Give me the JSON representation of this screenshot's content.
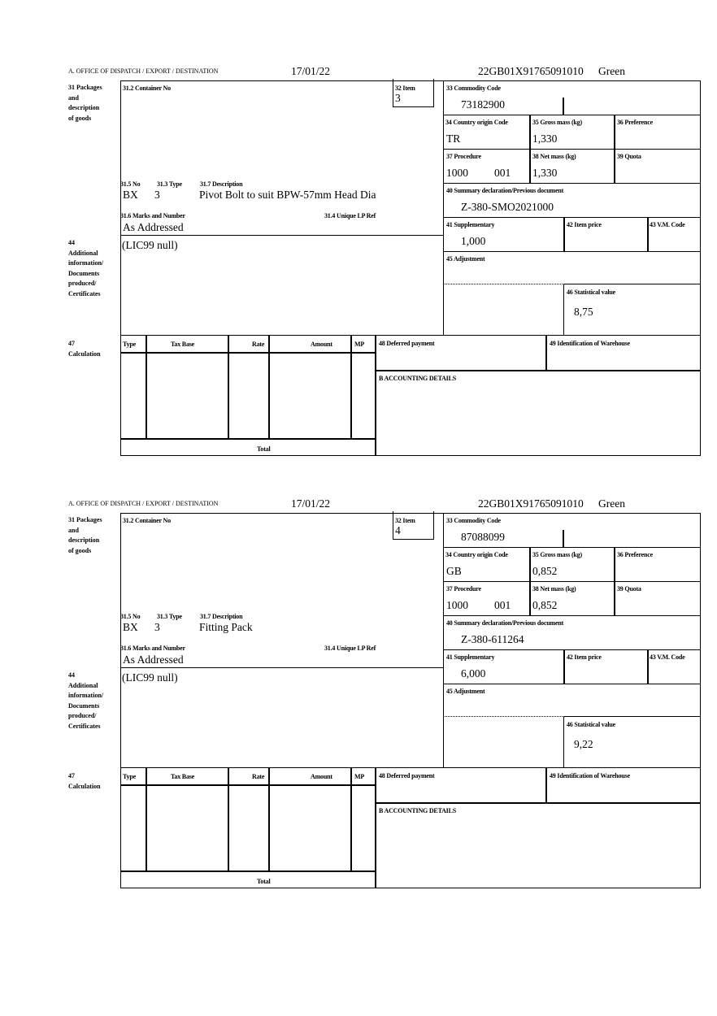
{
  "labels": {
    "office": "A.  OFFICE OF DISPATCH / EXPORT / DESTINATION",
    "l31": [
      "31 Packages",
      "and",
      "description",
      "of goods"
    ],
    "l31_2": "31.2 Container No",
    "l32": "32 Item",
    "l31_5": "31.5 No",
    "l31_3": "31.3 Type",
    "l31_7": "31.7 Description",
    "l31_6": "31.6 Marks and Number",
    "l31_4": "31.4 Unique LP Ref",
    "l33": "33 Commodity Code",
    "l34": "34 Country origin Code",
    "l35": "35 Gross mass (kg)",
    "l36": "36 Preference",
    "l37": "37 Procedure",
    "l38": "38 Net mass (kg)",
    "l39": "39 Quota",
    "l40": "40 Summary declaration/Previous document",
    "l41": "41 Supplementary",
    "l42": "42 Item price",
    "l43": "43 V.M. Code",
    "l44": [
      "44",
      "Additional",
      "information/",
      "Documents",
      "produced/",
      "Certificates"
    ],
    "l45": "45 Adjustment",
    "l46": "46 Statistical value",
    "l47": [
      "47",
      "Calculation"
    ],
    "calc_headers": [
      "Type",
      "Tax Base",
      "Rate",
      "Amount",
      "MP"
    ],
    "total": "Total",
    "l48": "48 Deferred payment",
    "l49": "49 Identification of Warehouse",
    "lB": "B ACCOUNTING DETAILS"
  },
  "forms": [
    {
      "date": "17/01/22",
      "reference": "22GB01X91765091010",
      "route": "Green",
      "item": "3",
      "package_no": "BX",
      "package_type": "3",
      "description": "Pivot Bolt to suit BPW-57mm Head Dia",
      "marks": "As Addressed",
      "commodity_code": "73182900",
      "country_origin": "TR",
      "gross_mass": "1,330",
      "procedure": "1000",
      "procedure_add": "001",
      "net_mass": "1,330",
      "previous_document": "Z-380-SMO2021000",
      "supplementary": "1,000",
      "additional_info": "(LIC99 null)",
      "statistical_value": "8,75"
    },
    {
      "date": "17/01/22",
      "reference": "22GB01X91765091010",
      "route": "Green",
      "item": "4",
      "package_no": "BX",
      "package_type": "3",
      "description": "Fitting Pack",
      "marks": "As Addressed",
      "commodity_code": "87088099",
      "country_origin": "GB",
      "gross_mass": "0,852",
      "procedure": "1000",
      "procedure_add": "001",
      "net_mass": "0,852",
      "previous_document": "Z-380-611264",
      "supplementary": "6,000",
      "additional_info": "(LIC99 null)",
      "statistical_value": "9,22"
    }
  ]
}
